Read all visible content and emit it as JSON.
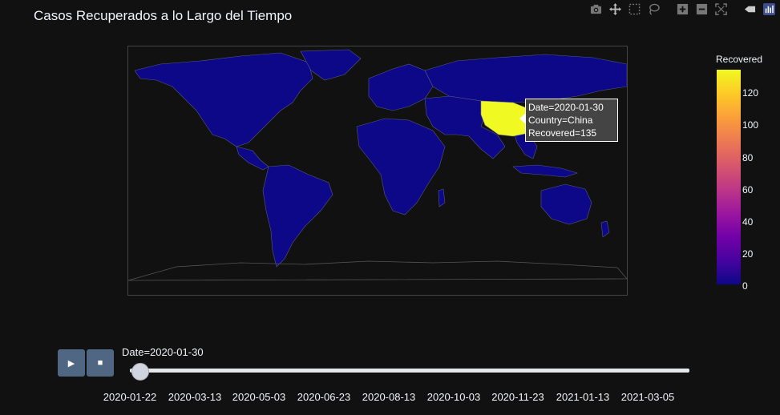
{
  "chart": {
    "title": "Casos Recuperados a lo Largo del Tiempo"
  },
  "modebar": {
    "icons": [
      "camera-icon",
      "pan-icon",
      "box-select-icon",
      "lasso-icon",
      "zoom-in-icon",
      "zoom-out-icon",
      "autoscale-icon",
      "reset-axes-icon",
      "plotly-logo-icon"
    ]
  },
  "tooltip": {
    "date_line": "Date=2020-01-30",
    "country_line": "Country=China",
    "recovered_line": "Recovered=135"
  },
  "colorbar": {
    "title": "Recovered",
    "ticks": [
      "120",
      "100",
      "80",
      "60",
      "40",
      "20",
      "0"
    ],
    "range": [
      0,
      135
    ],
    "colors": [
      "#0d0887",
      "#46039f",
      "#7201a8",
      "#9c179e",
      "#bd3786",
      "#d8576b",
      "#ed7953",
      "#fb9f3a",
      "#fdca26",
      "#f0f921"
    ]
  },
  "animation": {
    "play_symbol": "▶",
    "stop_symbol": "■",
    "current_label": "Date=2020-01-30",
    "slider_ticks": [
      "2020-01-22",
      "2020-03-13",
      "2020-05-03",
      "2020-06-23",
      "2020-08-13",
      "2020-10-03",
      "2020-11-23",
      "2021-01-13",
      "2021-03-05"
    ]
  },
  "chart_data": {
    "type": "choropleth",
    "title": "Casos Recuperados a lo Largo del Tiempo",
    "frame": "2020-01-30",
    "color_variable": "Recovered",
    "color_range": [
      0,
      135
    ],
    "highlighted": [
      {
        "country": "China",
        "recovered": 135
      }
    ],
    "others_value": 0
  }
}
